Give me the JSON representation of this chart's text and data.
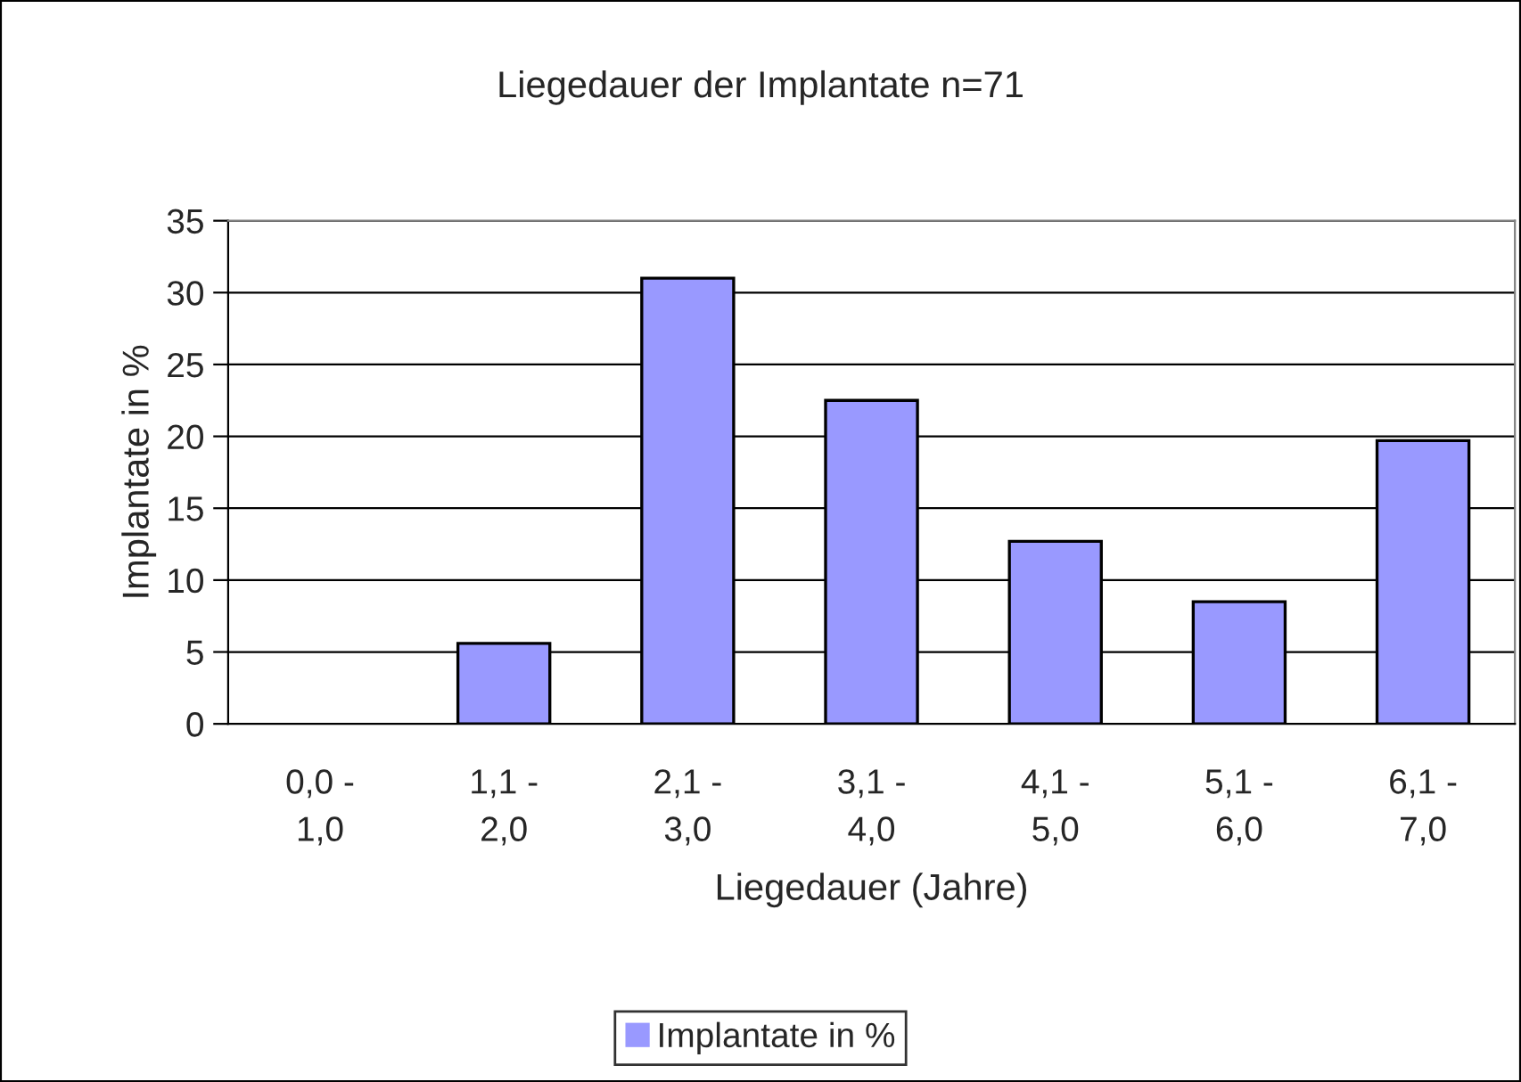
{
  "chart_data": {
    "type": "bar",
    "title": "Liegedauer der Implantate n=71",
    "xlabel": "Liegedauer (Jahre)",
    "ylabel": "Implantate in %",
    "categories": [
      "0,0 -\n1,0",
      "1,1 -\n2,0",
      "2,1 -\n3,0",
      "3,1 -\n4,0",
      "4,1 -\n5,0",
      "5,1 -\n6,0",
      "6,1 -\n7,0"
    ],
    "series": [
      {
        "name": "Implantate in %",
        "color": "#9999ff",
        "values": [
          0,
          5.6,
          31.0,
          22.5,
          12.7,
          8.5,
          19.7
        ]
      }
    ],
    "ylim": [
      0,
      35
    ],
    "yticks": [
      0,
      5,
      10,
      15,
      20,
      25,
      30,
      35
    ],
    "grid": "y",
    "legend": "bottom"
  }
}
